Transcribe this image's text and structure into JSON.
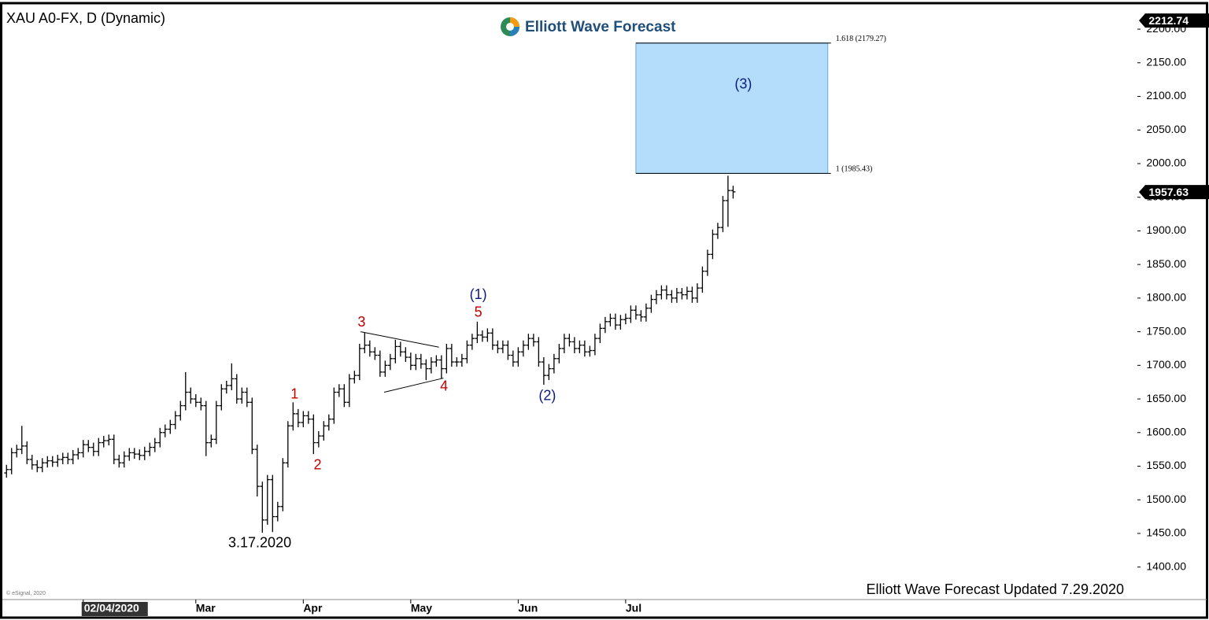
{
  "header": {
    "logo": "Elliott Wave Forecast"
  },
  "footer": {
    "note": "Elliott Wave Forecast Updated 7.29.2020",
    "copyright": "© eSignal, 2020"
  },
  "chart_data": {
    "type": "ohlc",
    "title": "XAU A0-FX, D (Dynamic)",
    "color": "#000000",
    "xlim": [
      -0.5,
      221
    ],
    "ylim": [
      1354,
      2234
    ],
    "yticks": [
      {
        "value": 1400,
        "label": "1400.00"
      },
      {
        "value": 1450,
        "label": "1450.00"
      },
      {
        "value": 1500,
        "label": "1500.00"
      },
      {
        "value": 1550,
        "label": "1550.00"
      },
      {
        "value": 1600,
        "label": "1600.00"
      },
      {
        "value": 1650,
        "label": "1650.00"
      },
      {
        "value": 1700,
        "label": "1700.00"
      },
      {
        "value": 1750,
        "label": "1750.00"
      },
      {
        "value": 1800,
        "label": "1800.00"
      },
      {
        "value": 1850,
        "label": "1850.00"
      },
      {
        "value": 1900,
        "label": "1900.00"
      },
      {
        "value": 1950,
        "label": "1950.00"
      },
      {
        "value": 2000,
        "label": "2000.00"
      },
      {
        "value": 2050,
        "label": "2050.00"
      },
      {
        "value": 2100,
        "label": "2100.00"
      },
      {
        "value": 2150,
        "label": "2150.00"
      },
      {
        "value": 2200,
        "label": "2200.00"
      }
    ],
    "xticks": [
      {
        "value": 15,
        "label": "02/04/2020"
      },
      {
        "value": 37,
        "label": "Mar"
      },
      {
        "value": 58,
        "label": "Apr"
      },
      {
        "value": 79,
        "label": "May"
      },
      {
        "value": 100,
        "label": "Jun"
      },
      {
        "value": 121,
        "label": "Jul"
      }
    ],
    "open": [
      1540,
      1545,
      1570,
      1575,
      1580,
      1560,
      1552,
      1548,
      1555,
      1558,
      1556,
      1560,
      1563,
      1560,
      1567,
      1570,
      1582,
      1578,
      1572,
      1585,
      1588,
      1590,
      1560,
      1555,
      1565,
      1570,
      1568,
      1566,
      1572,
      1578,
      1585,
      1600,
      1605,
      1612,
      1625,
      1640,
      1660,
      1650,
      1645,
      1640,
      1585,
      1590,
      1640,
      1665,
      1670,
      1680,
      1650,
      1660,
      1645,
      1575,
      1520,
      1470,
      1530,
      1475,
      1490,
      1555,
      1610,
      1628,
      1615,
      1625,
      1620,
      1585,
      1595,
      1610,
      1620,
      1660,
      1665,
      1645,
      1680,
      1685,
      1725,
      1730,
      1720,
      1715,
      1690,
      1700,
      1710,
      1728,
      1720,
      1712,
      1700,
      1710,
      1702,
      1695,
      1705,
      1708,
      1695,
      1725,
      1705,
      1705,
      1710,
      1730,
      1740,
      1745,
      1742,
      1748,
      1730,
      1725,
      1730,
      1715,
      1705,
      1720,
      1730,
      1740,
      1735,
      1705,
      1685,
      1695,
      1710,
      1725,
      1740,
      1735,
      1725,
      1730,
      1720,
      1722,
      1740,
      1755,
      1765,
      1770,
      1760,
      1768,
      1770,
      1782,
      1775,
      1772,
      1785,
      1798,
      1805,
      1812,
      1805,
      1800,
      1808,
      1805,
      1810,
      1800,
      1815,
      1840,
      1865,
      1895,
      1905,
      1945,
      1960
    ],
    "high": [
      1552,
      1577,
      1582,
      1610,
      1587,
      1567,
      1559,
      1562,
      1565,
      1565,
      1567,
      1570,
      1570,
      1574,
      1577,
      1589,
      1589,
      1585,
      1592,
      1595,
      1597,
      1597,
      1567,
      1572,
      1577,
      1577,
      1575,
      1579,
      1585,
      1592,
      1607,
      1612,
      1619,
      1632,
      1647,
      1690,
      1667,
      1657,
      1652,
      1647,
      1597,
      1647,
      1672,
      1677,
      1703,
      1687,
      1667,
      1667,
      1652,
      1582,
      1527,
      1537,
      1537,
      1497,
      1562,
      1617,
      1645,
      1635,
      1632,
      1632,
      1627,
      1602,
      1617,
      1627,
      1667,
      1672,
      1672,
      1687,
      1692,
      1732,
      1749,
      1737,
      1727,
      1722,
      1707,
      1717,
      1738,
      1735,
      1727,
      1719,
      1717,
      1717,
      1709,
      1712,
      1715,
      1715,
      1732,
      1732,
      1712,
      1717,
      1737,
      1747,
      1765,
      1752,
      1755,
      1755,
      1737,
      1737,
      1737,
      1722,
      1727,
      1737,
      1747,
      1747,
      1742,
      1712,
      1702,
      1717,
      1732,
      1747,
      1747,
      1742,
      1737,
      1737,
      1729,
      1747,
      1762,
      1772,
      1777,
      1777,
      1775,
      1777,
      1789,
      1789,
      1782,
      1792,
      1805,
      1812,
      1819,
      1819,
      1812,
      1815,
      1815,
      1817,
      1817,
      1822,
      1847,
      1872,
      1902,
      1912,
      1952,
      1982,
      1967
    ],
    "low": [
      1533,
      1538,
      1563,
      1568,
      1553,
      1545,
      1541,
      1541,
      1548,
      1549,
      1549,
      1553,
      1553,
      1553,
      1560,
      1563,
      1571,
      1565,
      1565,
      1578,
      1581,
      1553,
      1548,
      1548,
      1558,
      1561,
      1559,
      1559,
      1565,
      1571,
      1578,
      1593,
      1598,
      1605,
      1618,
      1633,
      1643,
      1638,
      1633,
      1565,
      1578,
      1583,
      1633,
      1658,
      1663,
      1643,
      1643,
      1638,
      1568,
      1505,
      1451,
      1463,
      1452,
      1468,
      1483,
      1548,
      1603,
      1608,
      1608,
      1613,
      1568,
      1578,
      1588,
      1603,
      1613,
      1653,
      1638,
      1638,
      1673,
      1678,
      1718,
      1713,
      1708,
      1683,
      1683,
      1693,
      1703,
      1713,
      1705,
      1693,
      1693,
      1695,
      1678,
      1688,
      1698,
      1680,
      1688,
      1698,
      1698,
      1698,
      1703,
      1723,
      1733,
      1735,
      1735,
      1723,
      1718,
      1718,
      1708,
      1698,
      1698,
      1713,
      1723,
      1728,
      1698,
      1671,
      1678,
      1688,
      1703,
      1718,
      1728,
      1718,
      1718,
      1713,
      1713,
      1715,
      1733,
      1748,
      1758,
      1753,
      1753,
      1761,
      1763,
      1768,
      1765,
      1765,
      1778,
      1791,
      1798,
      1798,
      1793,
      1793,
      1798,
      1798,
      1793,
      1793,
      1808,
      1833,
      1858,
      1888,
      1898,
      1906,
      1948
    ],
    "close": [
      1545,
      1570,
      1575,
      1580,
      1560,
      1552,
      1548,
      1555,
      1558,
      1556,
      1560,
      1563,
      1560,
      1567,
      1570,
      1582,
      1578,
      1572,
      1585,
      1588,
      1590,
      1560,
      1555,
      1565,
      1570,
      1568,
      1566,
      1572,
      1578,
      1585,
      1600,
      1605,
      1612,
      1625,
      1640,
      1660,
      1650,
      1645,
      1640,
      1585,
      1590,
      1640,
      1665,
      1670,
      1680,
      1650,
      1660,
      1645,
      1575,
      1520,
      1470,
      1530,
      1475,
      1490,
      1555,
      1610,
      1628,
      1615,
      1625,
      1620,
      1585,
      1595,
      1610,
      1620,
      1660,
      1665,
      1645,
      1680,
      1685,
      1725,
      1730,
      1720,
      1715,
      1690,
      1700,
      1710,
      1728,
      1720,
      1712,
      1700,
      1710,
      1702,
      1695,
      1705,
      1708,
      1695,
      1725,
      1705,
      1705,
      1710,
      1730,
      1740,
      1745,
      1742,
      1748,
      1730,
      1725,
      1730,
      1715,
      1705,
      1720,
      1730,
      1740,
      1735,
      1705,
      1685,
      1695,
      1710,
      1725,
      1740,
      1735,
      1725,
      1730,
      1720,
      1722,
      1740,
      1755,
      1765,
      1770,
      1760,
      1768,
      1770,
      1782,
      1775,
      1772,
      1785,
      1798,
      1805,
      1812,
      1805,
      1800,
      1808,
      1805,
      1810,
      1800,
      1815,
      1840,
      1865,
      1895,
      1905,
      1945,
      1960,
      1958
    ],
    "price_tags": [
      2212.74,
      1957.63
    ],
    "target_zone": {
      "x": [
        123,
        160.5
      ],
      "color": "#b3ddfa",
      "levels": [
        {
          "value": 1985.43,
          "label": "1 (1985.43)"
        },
        {
          "value": 2179.27,
          "label": "1.618 (2179.27)"
        }
      ]
    },
    "trendlines": [
      [
        [
          69.2,
          1750
        ],
        [
          84.5,
          1727
        ]
      ],
      [
        [
          73.8,
          1660
        ],
        [
          85.4,
          1681
        ]
      ]
    ],
    "annotations": [
      {
        "text": "3.17.2020",
        "x": 49.5,
        "y": 1435,
        "color": "#000000"
      },
      {
        "text": "1",
        "x": 56.3,
        "y": 1656,
        "color": "#c00000"
      },
      {
        "text": "2",
        "x": 60.8,
        "y": 1551,
        "color": "#c00000"
      },
      {
        "text": "3",
        "x": 69.4,
        "y": 1763,
        "color": "#c00000"
      },
      {
        "text": "4",
        "x": 85.5,
        "y": 1668,
        "color": "#c00000"
      },
      {
        "text": "5",
        "x": 92.2,
        "y": 1778,
        "color": "#c00000"
      },
      {
        "text": "(1)",
        "x": 92.2,
        "y": 1804,
        "color": "#0d1b80"
      },
      {
        "text": "(2)",
        "x": 105.7,
        "y": 1654,
        "color": "#0d1b80"
      },
      {
        "text": "(3)",
        "x": 144,
        "y": 2117,
        "color": "#0d1b80"
      }
    ]
  }
}
